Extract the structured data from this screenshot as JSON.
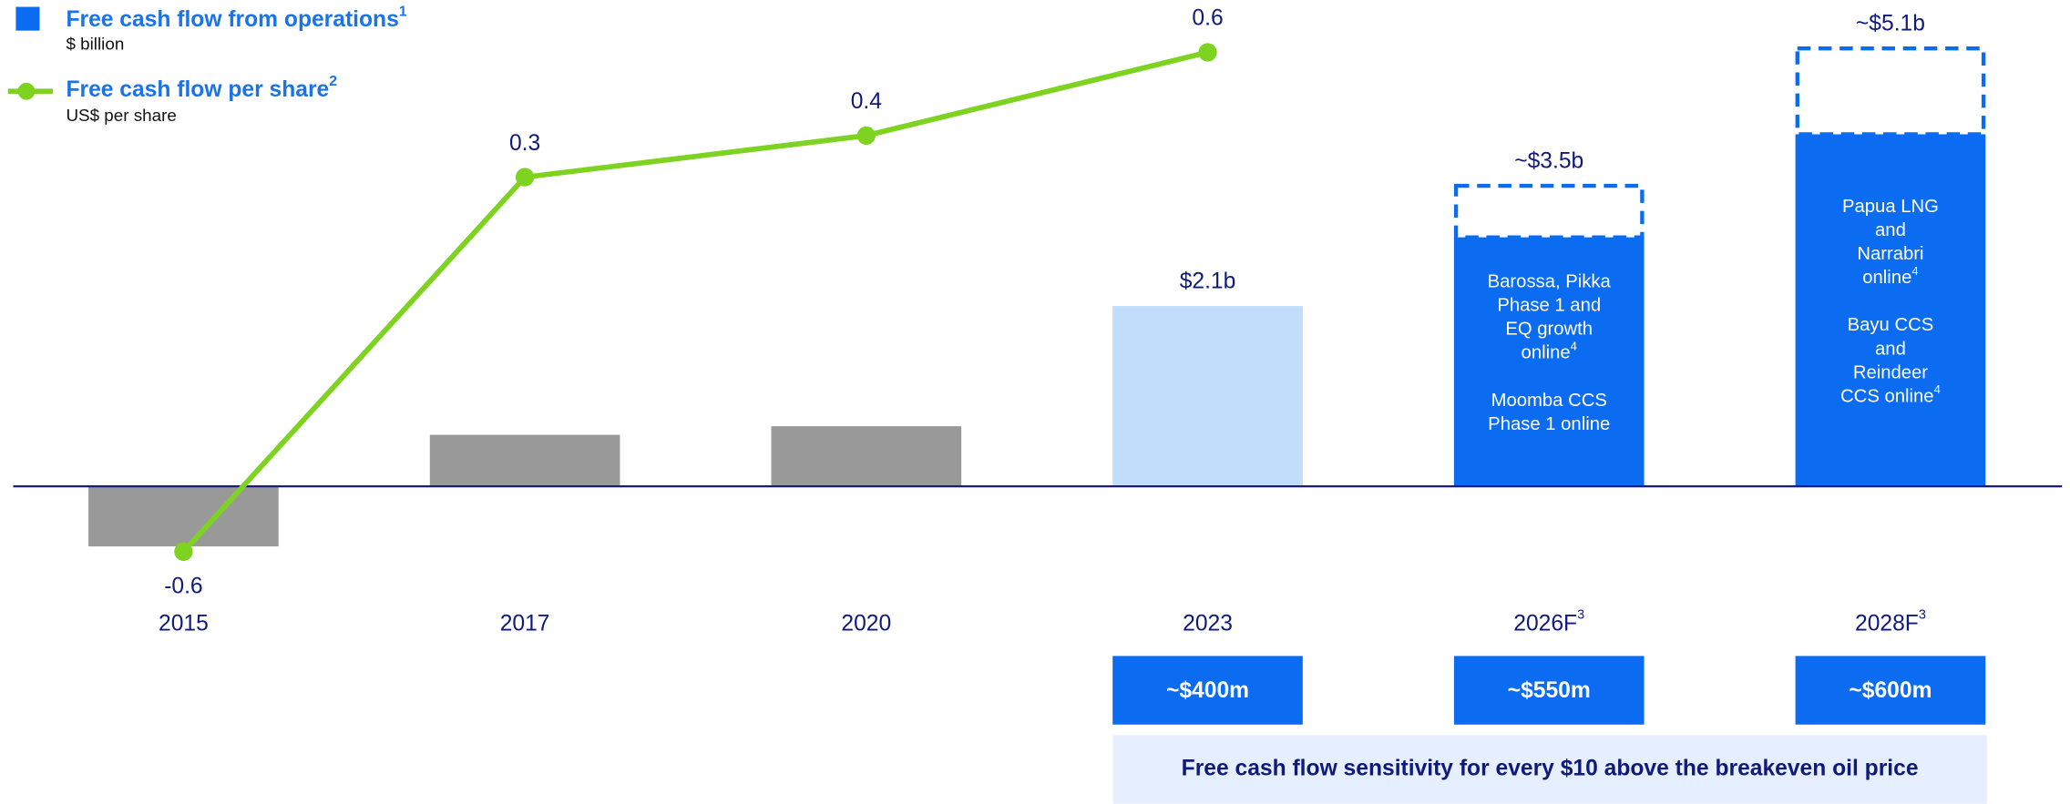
{
  "chart_data": {
    "type": "bar_line",
    "categories": [
      "2015",
      "2017",
      "2020",
      "2023",
      "2026F",
      "2028F"
    ],
    "category_notes": [
      null,
      null,
      null,
      null,
      "3",
      "3"
    ],
    "series": [
      {
        "name": "Free cash flow from operations",
        "name_note": "1",
        "unit": "$ billion",
        "type": "bar",
        "colors": [
          "#999999",
          "#999999",
          "#999999",
          "#c2dcfc",
          "#0b6cf2",
          "#0b6cf2"
        ],
        "values": [
          -0.7,
          0.6,
          0.7,
          2.1,
          2.9,
          4.1
        ],
        "value_labels": [
          null,
          null,
          null,
          "$2.1b",
          null,
          null
        ],
        "upper_values": [
          null,
          null,
          null,
          null,
          3.5,
          5.1
        ],
        "upper_labels": [
          null,
          null,
          null,
          null,
          "~$3.5b",
          "~$5.1b"
        ]
      },
      {
        "name": "Free cash flow per share",
        "name_note": "2",
        "unit": "US$ per share",
        "type": "line",
        "axis": "y2",
        "color": "#7ed321",
        "values": [
          -0.6,
          0.3,
          0.4,
          0.6,
          null,
          null
        ]
      }
    ],
    "bar_notes": [
      null,
      null,
      null,
      null,
      [
        {
          "lines": [
            "Barossa, Pikka",
            "Phase 1 and",
            "EQ growth",
            "online"
          ],
          "note": "4"
        },
        {
          "lines": [
            "Moomba CCS",
            "Phase 1 online"
          ]
        }
      ],
      [
        {
          "lines": [
            "Papua LNG",
            "and",
            "Narrabri",
            "online"
          ],
          "note": "4"
        },
        {
          "lines": [
            "Bayu CCS",
            "and",
            "Reindeer",
            "CCS online"
          ],
          "note": "4"
        }
      ]
    ],
    "sensitivity": {
      "title": "Free cash flow sensitivity for every $10 above the breakeven oil price",
      "values": [
        null,
        null,
        null,
        400,
        550,
        600
      ],
      "value_labels": [
        null,
        null,
        null,
        "~$400m",
        "~$550m",
        "~$600m"
      ]
    },
    "ylim": [
      -1.1,
      5.2
    ],
    "y2lim": [
      -0.67,
      0.63
    ],
    "grid": false
  }
}
